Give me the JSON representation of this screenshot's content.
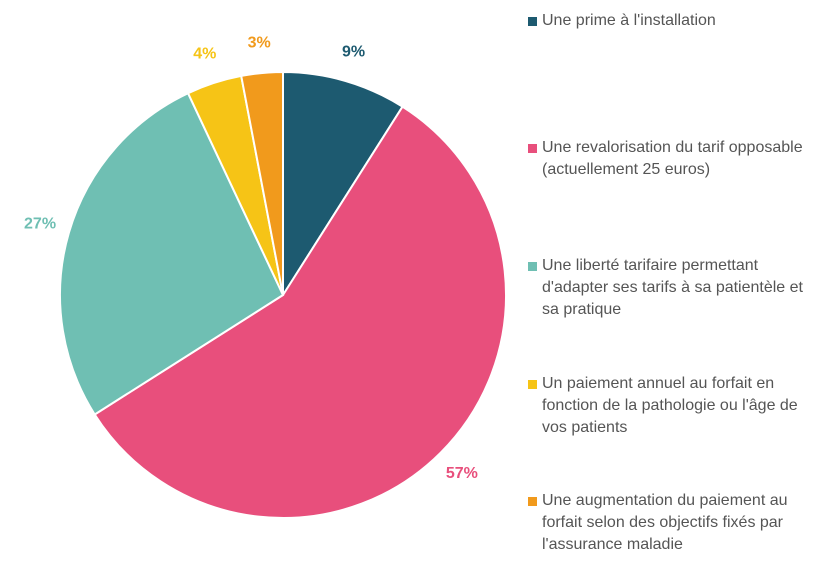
{
  "chart_data": {
    "type": "pie",
    "categories": [
      "Une prime à l'installation",
      "Une revalorisation du tarif opposable (actuellement 25 euros)",
      "Une liberté tarifaire permettant d'adapter ses tarifs à sa patientèle et sa pratique",
      "Un paiement annuel au forfait en fonction de la pathologie ou l'âge de vos patients",
      "Une augmentation du paiement au forfait selon des objectifs fixés par l'assurance maladie"
    ],
    "values": [
      9,
      57,
      27,
      4,
      3
    ],
    "value_labels": [
      "9%",
      "57%",
      "27%",
      "4%",
      "3%"
    ],
    "colors": [
      "#1d5a70",
      "#e84f7c",
      "#6fbfb3",
      "#f6c416",
      "#f19a1c"
    ],
    "legend": "right"
  }
}
